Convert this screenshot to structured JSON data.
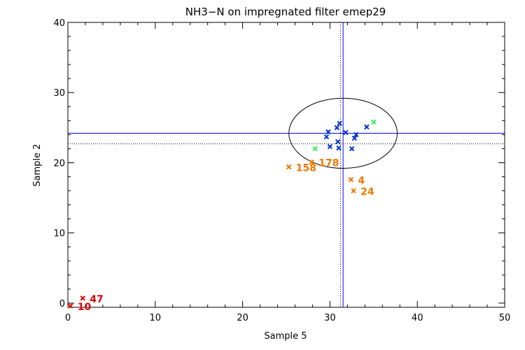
{
  "chart_data": {
    "type": "scatter",
    "title": "NH3−N on impregnated filter emep29",
    "xlabel": "Sample 5",
    "ylabel": "Sample 2",
    "xlim": [
      0,
      50
    ],
    "ylim": [
      -0.6,
      40
    ],
    "xticks": [
      0,
      10,
      20,
      30,
      40,
      50
    ],
    "yticks": [
      0,
      10,
      20,
      30,
      40
    ],
    "grid": false,
    "colors": {
      "axes": "#000000",
      "blue": "#0000ff",
      "blue_marker": "#0033cc",
      "green": "#33ee55",
      "orange": "#ee7700",
      "red": "#dd0000"
    },
    "reference_lines": {
      "solid_x": 31.5,
      "solid_y": 24.2,
      "dotted_x": 31.2,
      "dotted_y": 22.7
    },
    "ellipse": {
      "cx": 31.5,
      "cy": 24.2,
      "rx": 6.2,
      "ry": 5.0
    },
    "series": [
      {
        "color_key": "blue_marker",
        "points": [
          {
            "x": 29.8,
            "y": 24.4
          },
          {
            "x": 29.6,
            "y": 23.7
          },
          {
            "x": 30.0,
            "y": 22.3
          },
          {
            "x": 30.8,
            "y": 25.0
          },
          {
            "x": 31.1,
            "y": 25.6
          },
          {
            "x": 30.9,
            "y": 23.0
          },
          {
            "x": 31.0,
            "y": 22.1
          },
          {
            "x": 31.8,
            "y": 24.3
          },
          {
            "x": 32.5,
            "y": 22.0
          },
          {
            "x": 32.8,
            "y": 23.5
          },
          {
            "x": 33.0,
            "y": 24.0
          },
          {
            "x": 34.2,
            "y": 25.1
          }
        ]
      },
      {
        "color_key": "green",
        "points": [
          {
            "x": 28.3,
            "y": 22.0
          },
          {
            "x": 35.0,
            "y": 25.8
          }
        ]
      },
      {
        "color_key": "orange",
        "points": [
          {
            "x": 25.3,
            "y": 19.4,
            "label": "158"
          },
          {
            "x": 27.9,
            "y": 20.1,
            "label": "178"
          },
          {
            "x": 32.4,
            "y": 17.6,
            "label": "4"
          },
          {
            "x": 32.7,
            "y": 16.0,
            "label": "24"
          }
        ]
      },
      {
        "color_key": "red",
        "points": [
          {
            "x": 1.7,
            "y": 0.7,
            "label": "47"
          },
          {
            "x": 0.3,
            "y": -0.4,
            "label": "10"
          }
        ]
      }
    ]
  }
}
